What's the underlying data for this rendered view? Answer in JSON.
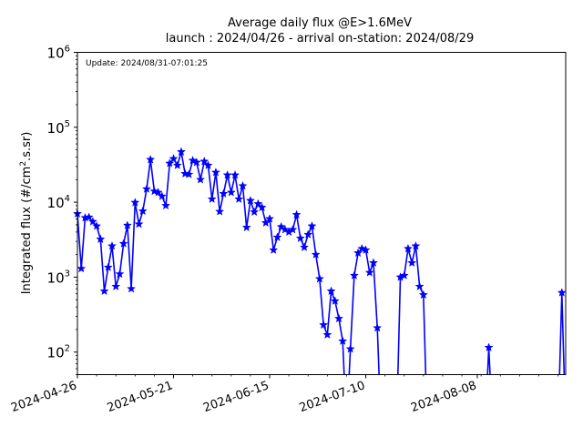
{
  "chart_data": {
    "type": "line",
    "title": "Average daily flux @E>1.6MeV",
    "subtitle": "launch : 2024/04/26 - arrival on-station: 2024/08/29",
    "annotation": "Update: 2024/08/31-07:01:25",
    "xlabel": "",
    "ylabel": "Integrated flux (#/cm2.s.sr)",
    "ylabel_main": "Integrated flux (#/cm",
    "ylabel_sup": "2",
    "ylabel_tail": ".s.sr)",
    "y_scale": "log",
    "ylim": [
      50,
      1000000
    ],
    "xlim": [
      "2024-04-26",
      "2024-08-31"
    ],
    "x_ticks": [
      "2024-04-26",
      "2024-05-21",
      "2024-06-15",
      "2024-07-10",
      "2024-08-08"
    ],
    "y_ticks": [
      {
        "value": 100,
        "base": "10",
        "exp": "2"
      },
      {
        "value": 1000,
        "base": "10",
        "exp": "3"
      },
      {
        "value": 10000,
        "base": "10",
        "exp": "4"
      },
      {
        "value": 100000,
        "base": "10",
        "exp": "5"
      },
      {
        "value": 1000000,
        "base": "10",
        "exp": "6"
      }
    ],
    "grid": false,
    "legend": "none",
    "series": [
      {
        "color": "#0000ff",
        "marker": "star",
        "points": [
          [
            "2024-04-26",
            7000
          ],
          [
            "2024-04-27",
            1300
          ],
          [
            "2024-04-28",
            6200
          ],
          [
            "2024-04-29",
            6300
          ],
          [
            "2024-04-30",
            5500
          ],
          [
            "2024-05-01",
            4800
          ],
          [
            "2024-05-02",
            3200
          ],
          [
            "2024-05-03",
            650
          ],
          [
            "2024-05-04",
            1350
          ],
          [
            "2024-05-05",
            2600
          ],
          [
            "2024-05-06",
            750
          ],
          [
            "2024-05-07",
            1100
          ],
          [
            "2024-05-08",
            2800
          ],
          [
            "2024-05-09",
            4900
          ],
          [
            "2024-05-10",
            700
          ],
          [
            "2024-05-11",
            9900
          ],
          [
            "2024-05-12",
            5100
          ],
          [
            "2024-05-13",
            7600
          ],
          [
            "2024-05-14",
            15000
          ],
          [
            "2024-05-15",
            37000
          ],
          [
            "2024-05-16",
            14000
          ],
          [
            "2024-05-17",
            13500
          ],
          [
            "2024-05-18",
            12000
          ],
          [
            "2024-05-19",
            9000
          ],
          [
            "2024-05-20",
            33000
          ],
          [
            "2024-05-21",
            38000
          ],
          [
            "2024-05-22",
            31000
          ],
          [
            "2024-05-23",
            47000
          ],
          [
            "2024-05-24",
            24000
          ],
          [
            "2024-05-25",
            23500
          ],
          [
            "2024-05-26",
            36000
          ],
          [
            "2024-05-27",
            34000
          ],
          [
            "2024-05-28",
            20000
          ],
          [
            "2024-05-29",
            35000
          ],
          [
            "2024-05-30",
            31000
          ],
          [
            "2024-05-31",
            11000
          ],
          [
            "2024-06-01",
            25000
          ],
          [
            "2024-06-02",
            7500
          ],
          [
            "2024-06-03",
            13000
          ],
          [
            "2024-06-04",
            23000
          ],
          [
            "2024-06-05",
            13500
          ],
          [
            "2024-06-06",
            23000
          ],
          [
            "2024-06-07",
            11000
          ],
          [
            "2024-06-08",
            16500
          ],
          [
            "2024-06-09",
            4600
          ],
          [
            "2024-06-10",
            10500
          ],
          [
            "2024-06-11",
            7400
          ],
          [
            "2024-06-12",
            9500
          ],
          [
            "2024-06-13",
            8500
          ],
          [
            "2024-06-14",
            5300
          ],
          [
            "2024-06-15",
            6000
          ],
          [
            "2024-06-16",
            2300
          ],
          [
            "2024-06-17",
            3400
          ],
          [
            "2024-06-18",
            4700
          ],
          [
            "2024-06-19",
            4300
          ],
          [
            "2024-06-20",
            4000
          ],
          [
            "2024-06-21",
            4300
          ],
          [
            "2024-06-22",
            6800
          ],
          [
            "2024-06-23",
            3300
          ],
          [
            "2024-06-24",
            2500
          ],
          [
            "2024-06-25",
            3700
          ],
          [
            "2024-06-26",
            4800
          ],
          [
            "2024-06-27",
            2000
          ],
          [
            "2024-06-28",
            950
          ],
          [
            "2024-06-29",
            230
          ],
          [
            "2024-06-30",
            170
          ],
          [
            "2024-07-01",
            650
          ],
          [
            "2024-07-02",
            480
          ],
          [
            "2024-07-03",
            280
          ],
          [
            "2024-07-04",
            140
          ],
          [
            "2024-07-05",
            null
          ],
          [
            "2024-07-06",
            110
          ],
          [
            "2024-07-07",
            1050
          ],
          [
            "2024-07-08",
            2100
          ],
          [
            "2024-07-09",
            2400
          ],
          [
            "2024-07-10",
            2300
          ],
          [
            "2024-07-11",
            1150
          ],
          [
            "2024-07-12",
            1550
          ],
          [
            "2024-07-13",
            210
          ],
          [
            "2024-07-14",
            null
          ],
          [
            "2024-07-15",
            null
          ],
          [
            "2024-07-16",
            null
          ],
          [
            "2024-07-17",
            null
          ],
          [
            "2024-07-18",
            null
          ],
          [
            "2024-07-19",
            1000
          ],
          [
            "2024-07-20",
            1050
          ],
          [
            "2024-07-21",
            2400
          ],
          [
            "2024-07-22",
            1550
          ],
          [
            "2024-07-23",
            2600
          ],
          [
            "2024-07-24",
            750
          ],
          [
            "2024-07-25",
            580
          ],
          [
            "2024-07-26",
            null
          ],
          [
            "2024-08-10",
            null
          ],
          [
            "2024-08-11",
            115
          ],
          [
            "2024-08-12",
            null
          ],
          [
            "2024-08-29",
            null
          ],
          [
            "2024-08-30",
            620
          ],
          [
            "2024-08-31",
            null
          ]
        ]
      }
    ]
  }
}
